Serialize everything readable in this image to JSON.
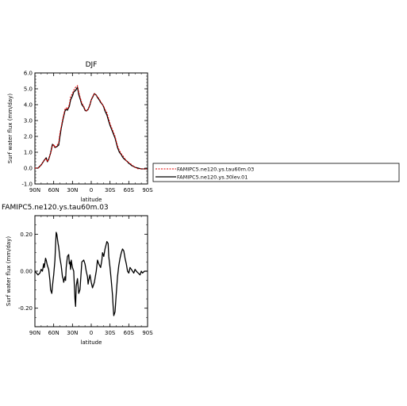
{
  "chart_data": [
    {
      "type": "line",
      "title": "DJF",
      "xlabel": "latitude",
      "ylabel": "Surf water flux (mm/day)",
      "xlim": [
        90,
        -90
      ],
      "ylim": [
        -1.0,
        6.0
      ],
      "x_ticks": [
        "90N",
        "60N",
        "30N",
        "0",
        "30S",
        "60S",
        "90S"
      ],
      "y_ticks": [
        "-1.0",
        "0.0",
        "1.0",
        "2.0",
        "3.0",
        "4.0",
        "5.0",
        "6.0"
      ],
      "legend_position": "right of plot",
      "series": [
        {
          "name": "FAMIPC5.ne120.ys.tau60m.03",
          "color": "#e00000",
          "style": "dashed",
          "x": [
            90,
            85,
            80,
            75,
            72,
            70,
            68,
            65,
            62,
            60,
            58,
            55,
            52,
            50,
            48,
            45,
            42,
            40,
            38,
            35,
            33,
            30,
            28,
            25,
            22,
            20,
            18,
            15,
            12,
            10,
            8,
            5,
            2,
            0,
            -2,
            -5,
            -8,
            -10,
            -12,
            -15,
            -18,
            -20,
            -22,
            -25,
            -28,
            -30,
            -33,
            -35,
            -38,
            -40,
            -42,
            -45,
            -48,
            -50,
            -52,
            -55,
            -58,
            -60,
            -62,
            -65,
            -68,
            -70,
            -75,
            -80,
            -85,
            -90
          ],
          "values": [
            0.0,
            0.0,
            0.2,
            0.5,
            0.6,
            0.4,
            0.6,
            0.9,
            1.4,
            1.5,
            1.3,
            1.4,
            1.6,
            2.2,
            2.6,
            3.2,
            3.7,
            3.8,
            3.7,
            4.0,
            4.5,
            4.7,
            4.9,
            5.1,
            5.2,
            4.8,
            4.5,
            4.1,
            3.9,
            3.7,
            3.6,
            3.7,
            4.0,
            4.3,
            4.5,
            4.7,
            4.6,
            4.5,
            4.4,
            4.2,
            4.0,
            3.9,
            3.7,
            3.5,
            3.1,
            2.8,
            2.5,
            2.3,
            2.0,
            1.7,
            1.4,
            1.1,
            0.9,
            0.8,
            0.7,
            0.5,
            0.4,
            0.35,
            0.3,
            0.2,
            0.1,
            0.05,
            -0.05,
            -0.05,
            -0.05,
            -0.05
          ]
        },
        {
          "name": "FAMIPC5.ne120.ys.30lev.01",
          "color": "#000000",
          "style": "solid",
          "x": [
            90,
            85,
            80,
            75,
            72,
            70,
            68,
            65,
            62,
            60,
            58,
            55,
            52,
            50,
            48,
            45,
            42,
            40,
            38,
            35,
            33,
            30,
            28,
            25,
            22,
            20,
            18,
            15,
            12,
            10,
            8,
            5,
            2,
            0,
            -2,
            -5,
            -8,
            -10,
            -12,
            -15,
            -18,
            -20,
            -22,
            -25,
            -28,
            -30,
            -33,
            -35,
            -38,
            -40,
            -42,
            -45,
            -48,
            -50,
            -52,
            -55,
            -58,
            -60,
            -62,
            -65,
            -68,
            -70,
            -75,
            -80,
            -85,
            -90
          ],
          "values": [
            0.0,
            0.0,
            0.2,
            0.5,
            0.65,
            0.4,
            0.55,
            0.95,
            1.5,
            1.45,
            1.3,
            1.35,
            1.45,
            2.0,
            2.5,
            3.1,
            3.6,
            3.7,
            3.65,
            3.9,
            4.3,
            4.55,
            4.8,
            4.9,
            5.1,
            4.65,
            4.4,
            4.0,
            3.85,
            3.65,
            3.6,
            3.7,
            4.0,
            4.3,
            4.45,
            4.7,
            4.6,
            4.45,
            4.35,
            4.15,
            4.0,
            3.85,
            3.6,
            3.35,
            2.95,
            2.7,
            2.4,
            2.2,
            1.9,
            1.6,
            1.3,
            1.0,
            0.85,
            0.7,
            0.6,
            0.5,
            0.4,
            0.3,
            0.25,
            0.15,
            0.1,
            0.05,
            0.0,
            -0.05,
            -0.05,
            -0.05
          ]
        }
      ]
    },
    {
      "type": "line",
      "title": "FAMIPC5.ne120.ys.tau60m.03",
      "xlabel": "latitude",
      "ylabel": "Surf water flux (mm/day)",
      "xlim": [
        90,
        -90
      ],
      "ylim": [
        -0.3,
        0.3
      ],
      "x_ticks": [
        "90N",
        "60N",
        "30N",
        "0",
        "30S",
        "60S",
        "90S"
      ],
      "y_ticks": [
        "0.20",
        "0.00",
        "-0.20"
      ],
      "series": [
        {
          "color": "#000000",
          "style": "solid",
          "x": [
            90,
            85,
            82,
            80,
            78,
            76,
            75,
            73,
            72,
            70,
            68,
            66,
            65,
            63,
            62,
            60,
            58,
            57,
            56,
            55,
            53,
            52,
            50,
            48,
            46,
            45,
            44,
            42,
            41,
            40,
            38,
            36,
            35,
            34,
            33,
            32,
            31,
            30,
            28,
            26,
            25,
            24,
            22,
            20,
            18,
            15,
            12,
            10,
            8,
            6,
            5,
            4,
            2,
            0,
            -2,
            -5,
            -8,
            -10,
            -12,
            -15,
            -17,
            -18,
            -20,
            -22,
            -25,
            -27,
            -28,
            -30,
            -32,
            -34,
            -35,
            -36,
            -38,
            -40,
            -42,
            -44,
            -46,
            -48,
            -50,
            -52,
            -54,
            -56,
            -58,
            -60,
            -62,
            -64,
            -66,
            -68,
            -70,
            -72,
            -75,
            -78,
            -80,
            -82,
            -85,
            -88,
            -90
          ],
          "values": [
            0.0,
            -0.02,
            -0.01,
            0.01,
            0.0,
            0.04,
            0.02,
            0.07,
            0.06,
            0.03,
            0.01,
            -0.05,
            -0.1,
            -0.12,
            -0.08,
            -0.02,
            0.06,
            0.14,
            0.21,
            0.2,
            0.15,
            0.13,
            0.07,
            0.03,
            -0.03,
            -0.04,
            -0.06,
            -0.03,
            -0.05,
            0.02,
            0.08,
            0.09,
            0.04,
            0.05,
            0.01,
            0.06,
            0.04,
            0.02,
            0.0,
            -0.15,
            -0.19,
            -0.08,
            -0.04,
            -0.12,
            -0.1,
            0.05,
            0.06,
            0.04,
            0.0,
            -0.03,
            -0.07,
            -0.05,
            -0.02,
            -0.06,
            -0.09,
            -0.06,
            0.0,
            0.06,
            0.04,
            0.02,
            0.06,
            0.1,
            0.08,
            0.12,
            0.16,
            0.15,
            0.08,
            0.02,
            -0.05,
            -0.13,
            -0.19,
            -0.24,
            -0.22,
            -0.12,
            -0.03,
            0.03,
            0.07,
            0.1,
            0.12,
            0.11,
            0.07,
            0.04,
            0.0,
            -0.01,
            0.02,
            0.01,
            0.0,
            -0.01,
            0.01,
            0.0,
            -0.01,
            -0.02,
            0.0,
            -0.01,
            0.0,
            0.0,
            0.0
          ]
        }
      ]
    }
  ]
}
